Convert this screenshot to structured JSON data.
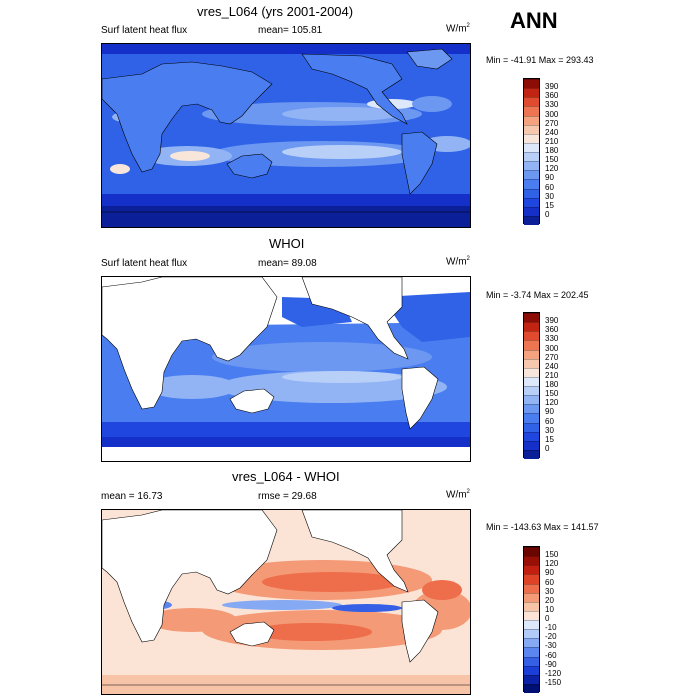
{
  "season": "ANN",
  "chart_data": [
    {
      "type": "heatmap",
      "title": "vres_L064 (yrs 2001-2004)",
      "left_label": "Surf latent heat flux",
      "center_label": "mean= 105.81",
      "units": "W/m",
      "units_sup": "2",
      "minmax": "Min = -41.91 Max = 293.43",
      "colorbar": {
        "levels": [
          "0",
          "15",
          "30",
          "60",
          "90",
          "120",
          "150",
          "180",
          "210",
          "240",
          "270",
          "300",
          "330",
          "360",
          "390"
        ],
        "colors": [
          "#0b1f99",
          "#1430c8",
          "#2046e0",
          "#2f62e6",
          "#4a7ef0",
          "#6c98f2",
          "#92b4f5",
          "#b8cff8",
          "#dde9fb",
          "#f9e6da",
          "#f7c8ad",
          "#f4a37e",
          "#ee7552",
          "#e04a2e",
          "#c22414",
          "#8c0d05"
        ]
      }
    },
    {
      "type": "heatmap",
      "title": "WHOI",
      "left_label": "Surf latent heat flux",
      "center_label": "mean=  89.08",
      "units": "W/m",
      "units_sup": "2",
      "minmax": "Min =  -3.74 Max = 202.45",
      "colorbar": {
        "levels": [
          "0",
          "15",
          "30",
          "60",
          "90",
          "120",
          "150",
          "180",
          "210",
          "240",
          "270",
          "300",
          "330",
          "360",
          "390"
        ],
        "colors": [
          "#0b1f99",
          "#1430c8",
          "#2046e0",
          "#2f62e6",
          "#4a7ef0",
          "#6c98f2",
          "#92b4f5",
          "#b8cff8",
          "#dde9fb",
          "#f9e6da",
          "#f7c8ad",
          "#f4a37e",
          "#ee7552",
          "#e04a2e",
          "#c22414",
          "#8c0d05"
        ]
      }
    },
    {
      "type": "heatmap",
      "title": "vres_L064 - WHOI",
      "left_label": "mean =  16.73",
      "center_label": "rmse =  29.68",
      "units": "W/m",
      "units_sup": "2",
      "minmax": "Min = -143.63 Max = 141.57",
      "colorbar": {
        "levels": [
          "-150",
          "-120",
          "-90",
          "-60",
          "-30",
          "-20",
          "-10",
          "0",
          "10",
          "20",
          "30",
          "60",
          "90",
          "120",
          "150"
        ],
        "colors": [
          "#000f73",
          "#0b22a8",
          "#1a3ed6",
          "#3560e6",
          "#5b86ef",
          "#86a9f4",
          "#b3cbf8",
          "#dde8fb",
          "#fbe4d6",
          "#f8c4a8",
          "#f49a77",
          "#ee6d4a",
          "#de4327",
          "#c11f10",
          "#981005",
          "#6b0500"
        ]
      }
    }
  ]
}
